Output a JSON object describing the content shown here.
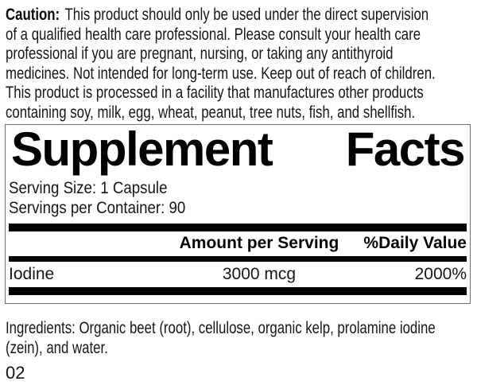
{
  "colors": {
    "bar": "#000000",
    "panel_border": "#6e6e6e",
    "text": "#161616"
  },
  "caution": {
    "label": "Caution:",
    "lines": [
      "This product should only be used under the direct supervision",
      "of a qualified health care professional. Please consult your health care",
      "professional if you are pregnant, nursing, or taking any antithyroid",
      "medicines. Not intended for long-term use. Keep out of reach of children.",
      "This product is processed in a facility that manufactures other products",
      "containing soy, milk, egg, wheat, peanut, tree nuts, fish, and shellfish."
    ]
  },
  "supplement_facts": {
    "title_words": [
      "Supplement",
      "Facts"
    ],
    "serving_size": "Serving Size: 1 Capsule",
    "servings_per_container": "Servings per Container: 90",
    "headers": {
      "amount": "Amount per Serving",
      "daily_value": "%Daily Value"
    },
    "rows": [
      {
        "name": "Iodine",
        "amount": "3000 mcg",
        "daily_value": "2000%"
      }
    ]
  },
  "ingredients": {
    "lines": [
      "Ingredients: Organic beet (root), cellulose, organic kelp, prolamine iodine",
      "(zein), and water."
    ]
  },
  "footer": {
    "code": "02"
  }
}
